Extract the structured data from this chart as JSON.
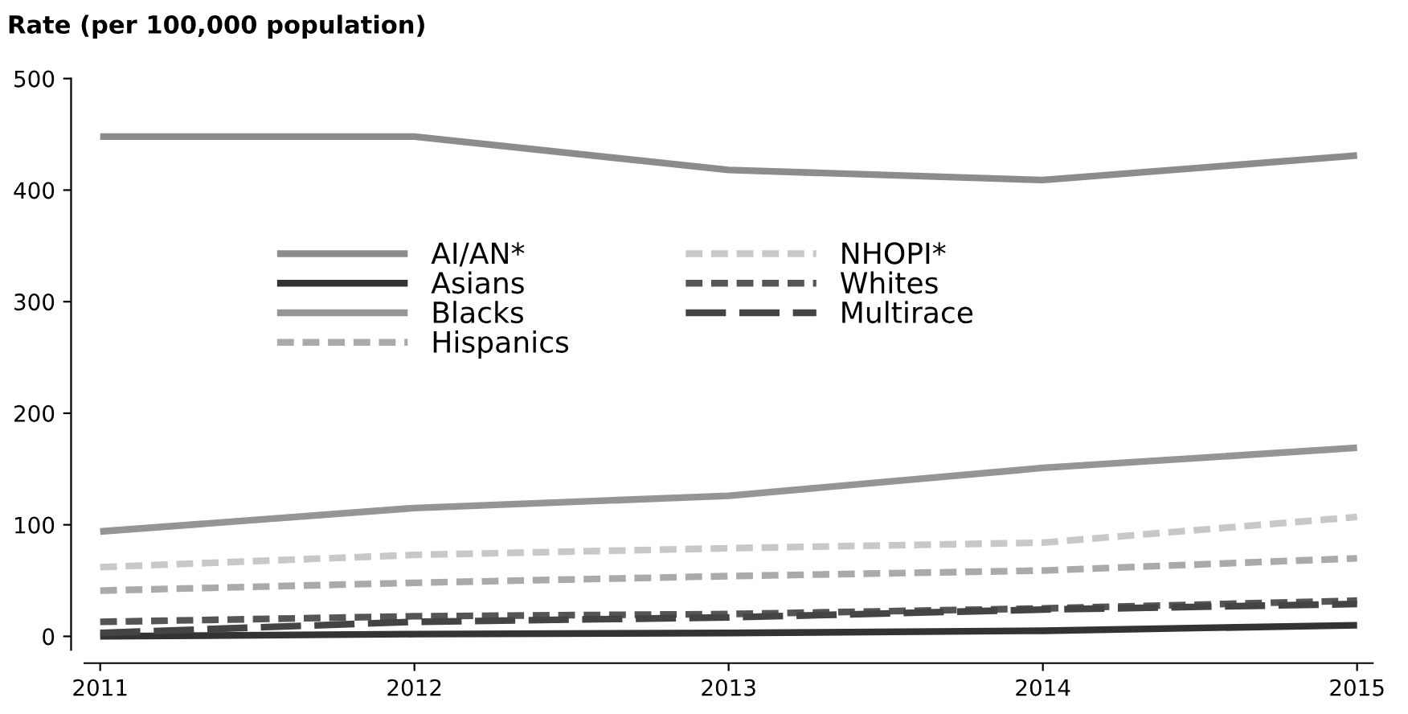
{
  "chart_data": {
    "type": "line",
    "ylabel": "Rate (per 100,000 population)",
    "categories": [
      "2011",
      "2012",
      "2013",
      "2014",
      "2015"
    ],
    "ylim": [
      -12,
      500
    ],
    "yticks": [
      0,
      100,
      200,
      300,
      400,
      500
    ],
    "grid": false,
    "legend": "top",
    "marker": "none",
    "series": [
      {
        "name": "AI/AN*",
        "color": "#8c8c8c",
        "line_style": "solid",
        "values": [
          448,
          448,
          418,
          409,
          431
        ]
      },
      {
        "name": "Asians",
        "color": "#333333",
        "line_style": "solid",
        "values": [
          0,
          2,
          3,
          5,
          10
        ]
      },
      {
        "name": "Blacks",
        "color": "#959595",
        "line_style": "solid",
        "values": [
          94,
          115,
          126,
          151,
          169
        ]
      },
      {
        "name": "Hispanics",
        "color": "#aaaaaa",
        "line_style": "dotted",
        "values": [
          41,
          48,
          54,
          59,
          70
        ]
      },
      {
        "name": "NHOPI*",
        "color": "#c8c8c8",
        "line_style": "dotted",
        "values": [
          62,
          73,
          79,
          84,
          107
        ]
      },
      {
        "name": "Whites",
        "color": "#555555",
        "line_style": "dotted",
        "values": [
          13,
          18,
          20,
          25,
          32
        ]
      },
      {
        "name": "Multirace",
        "color": "#444444",
        "line_style": "dashed",
        "values": [
          3,
          13,
          17,
          24,
          29
        ]
      }
    ]
  }
}
